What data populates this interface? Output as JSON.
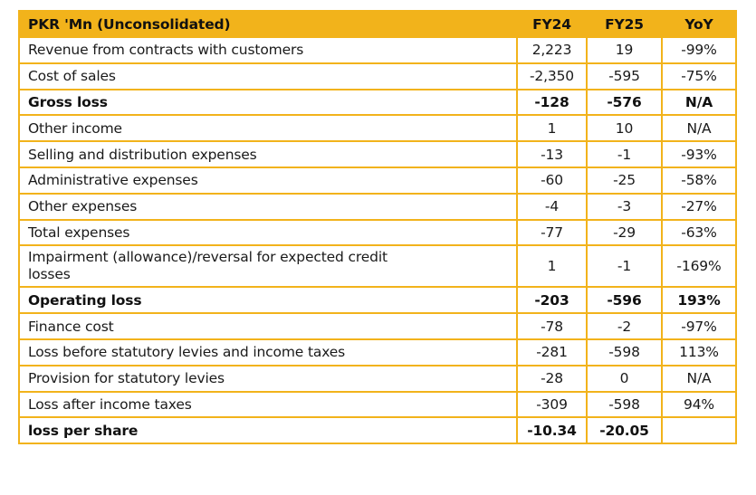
{
  "table": {
    "header": {
      "label": "PKR 'Mn (Unconsolidated)",
      "fy24": "FY24",
      "fy25": "FY25",
      "yoy": "YoY"
    },
    "rows": [
      {
        "label": "Revenue from contracts with customers",
        "fy24": "2,223",
        "fy25": "19",
        "yoy": "-99%",
        "bold": false
      },
      {
        "label": "Cost of sales",
        "fy24": "-2,350",
        "fy25": "-595",
        "yoy": "-75%",
        "bold": false
      },
      {
        "label": "Gross loss",
        "fy24": "-128",
        "fy25": "-576",
        "yoy": "N/A",
        "bold": true
      },
      {
        "label": "Other income",
        "fy24": "1",
        "fy25": "10",
        "yoy": "N/A",
        "bold": false
      },
      {
        "label": "Selling and distribution expenses",
        "fy24": "-13",
        "fy25": "-1",
        "yoy": "-93%",
        "bold": false
      },
      {
        "label": "Administrative expenses",
        "fy24": "-60",
        "fy25": "-25",
        "yoy": "-58%",
        "bold": false
      },
      {
        "label": "Other expenses",
        "fy24": "-4",
        "fy25": "-3",
        "yoy": "-27%",
        "bold": false
      },
      {
        "label": "Total expenses",
        "fy24": "-77",
        "fy25": "-29",
        "yoy": "-63%",
        "bold": false
      },
      {
        "label": "Impairment (allowance)/reversal for expected credit losses",
        "fy24": "1",
        "fy25": "-1",
        "yoy": "-169%",
        "bold": false
      },
      {
        "label": "Operating loss",
        "fy24": "-203",
        "fy25": "-596",
        "yoy": "193%",
        "bold": true
      },
      {
        "label": "Finance cost",
        "fy24": "-78",
        "fy25": "-2",
        "yoy": "-97%",
        "bold": false
      },
      {
        "label": "Loss before statutory levies and income taxes",
        "fy24": "-281",
        "fy25": "-598",
        "yoy": "113%",
        "bold": false
      },
      {
        "label": "Provision for statutory levies",
        "fy24": "-28",
        "fy25": "0",
        "yoy": "N/A",
        "bold": false
      },
      {
        "label": "Loss after income taxes",
        "fy24": "-309",
        "fy25": "-598",
        "yoy": "94%",
        "bold": false
      },
      {
        "label": "loss per share",
        "fy24": "-10.34",
        "fy25": "-20.05",
        "yoy": "",
        "bold": true
      }
    ]
  },
  "colors": {
    "accent": "#f2b31b",
    "text": "#1a1a1a"
  }
}
